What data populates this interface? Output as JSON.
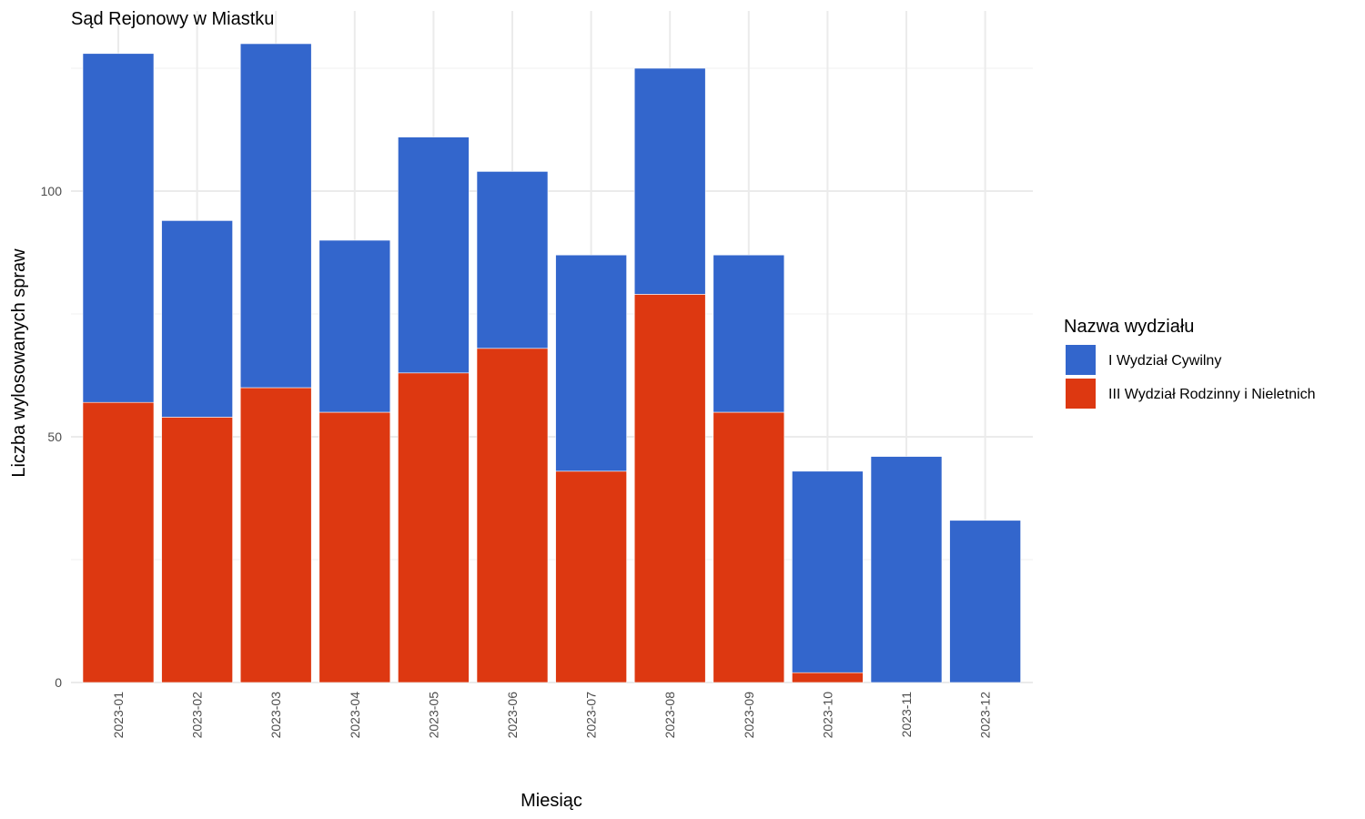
{
  "chart_data": {
    "type": "bar",
    "stacked": true,
    "title": "Sąd Rejonowy w Miastku",
    "xlabel": "Miesiąc",
    "ylabel": "Liczba wylosowanych spraw",
    "categories": [
      "2023-01",
      "2023-02",
      "2023-03",
      "2023-04",
      "2023-05",
      "2023-06",
      "2023-07",
      "2023-08",
      "2023-09",
      "2023-10",
      "2023-11",
      "2023-12"
    ],
    "series": [
      {
        "name": "III Wydział Rodzinny i Nieletnich",
        "color": "#dd3811",
        "values": [
          57,
          54,
          60,
          55,
          63,
          68,
          43,
          79,
          55,
          2,
          0,
          0
        ]
      },
      {
        "name": "I Wydział Cywilny",
        "color": "#3366cc",
        "values": [
          71,
          40,
          70,
          35,
          48,
          36,
          44,
          46,
          32,
          41,
          46,
          33
        ]
      }
    ],
    "yticks": [
      0,
      50,
      100
    ],
    "ylim": [
      0,
      131
    ],
    "grid": true,
    "legend": {
      "title": "Nazwa wydziału",
      "position": "right",
      "order": [
        "I Wydział Cywilny",
        "III Wydział Rodzinny i Nieletnich"
      ]
    }
  }
}
